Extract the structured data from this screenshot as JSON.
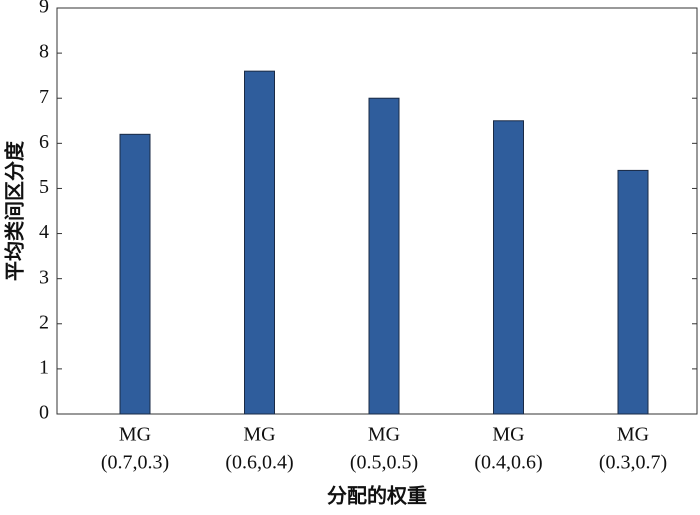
{
  "chart_data": {
    "type": "bar",
    "x_label": "分配的权重",
    "y_label": "平均类间区分度",
    "categories": [
      [
        "MG",
        "(0.7,0.3)"
      ],
      [
        "MG",
        "(0.6,0.4)"
      ],
      [
        "MG",
        "(0.5,0.5)"
      ],
      [
        "MG",
        "(0.4,0.6)"
      ],
      [
        "MG",
        "(0.3,0.7)"
      ]
    ],
    "values": [
      6.2,
      7.6,
      7.0,
      6.5,
      5.4
    ],
    "color": "#2f5d9c",
    "ylim": [
      0,
      9
    ],
    "yticks": [
      0,
      1,
      2,
      3,
      4,
      5,
      6,
      7,
      8,
      9
    ]
  }
}
